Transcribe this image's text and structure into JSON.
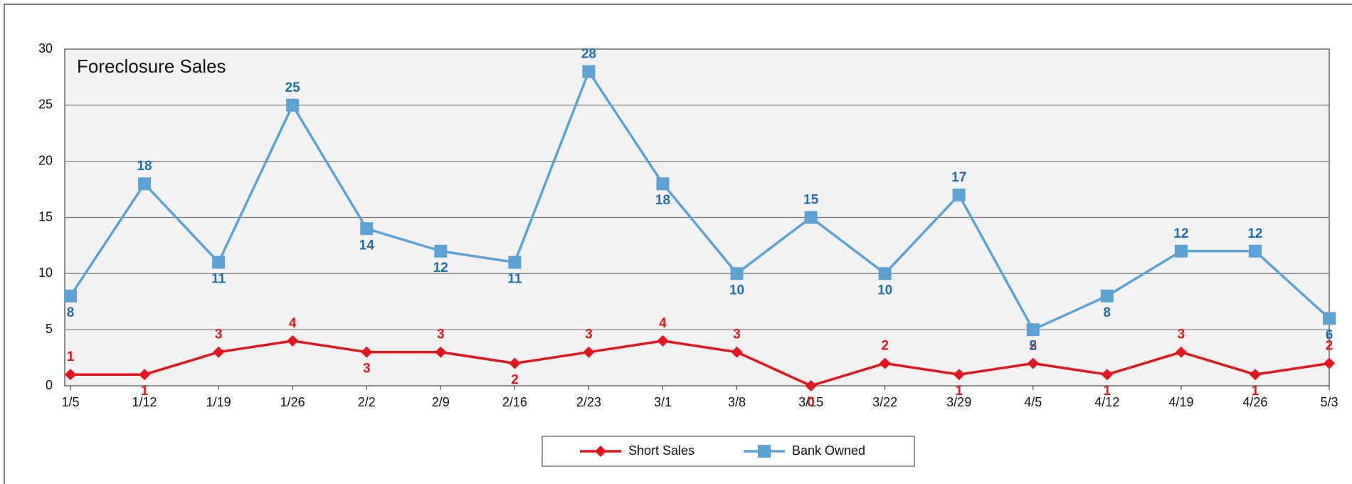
{
  "chart_data": {
    "type": "line",
    "title": "Foreclosure Sales",
    "categories": [
      "1/5",
      "1/12",
      "1/19",
      "1/26",
      "2/2",
      "2/9",
      "2/16",
      "2/23",
      "3/1",
      "3/8",
      "3/15",
      "3/22",
      "3/29",
      "4/5",
      "4/12",
      "4/19",
      "4/26",
      "5/3"
    ],
    "series": [
      {
        "name": "Short Sales",
        "color": "#e8141c",
        "label_color": "#e8141c",
        "marker": "diamond",
        "values": [
          1,
          1,
          3,
          4,
          3,
          3,
          2,
          3,
          4,
          3,
          0,
          2,
          1,
          2,
          1,
          3,
          1,
          2
        ]
      },
      {
        "name": "Bank Owned",
        "color": "#5ba3d6",
        "label_color": "#1f6fb5",
        "marker": "square",
        "values": [
          8,
          18,
          11,
          25,
          14,
          12,
          11,
          28,
          18,
          10,
          15,
          10,
          17,
          5,
          8,
          12,
          12,
          6
        ]
      }
    ],
    "ylim": [
      0,
      30
    ],
    "yticks": [
      0,
      5,
      10,
      15,
      20,
      25,
      30
    ],
    "grid": true,
    "legend": "bottom"
  }
}
